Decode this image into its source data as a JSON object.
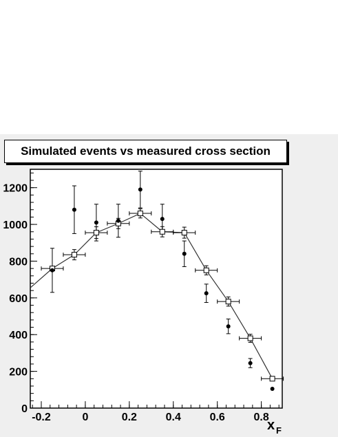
{
  "chart_data": {
    "type": "scatter",
    "title": "Simulated events vs measured cross section",
    "xlabel": "x",
    "xlabel_sub": "F",
    "ylabel": "",
    "xlim": [
      -0.25,
      0.895
    ],
    "ylim": [
      0,
      1300
    ],
    "x_ticks": [
      -0.2,
      0,
      0.2,
      0.4,
      0.6,
      0.8
    ],
    "x_tick_labels": [
      "-0.2",
      "0",
      "0.2",
      "0.4",
      "0.6",
      "0.8"
    ],
    "y_ticks": [
      0,
      200,
      400,
      600,
      800,
      1000,
      1200
    ],
    "y_tick_labels": [
      "0",
      "200",
      "400",
      "600",
      "800",
      "1000",
      "1200"
    ],
    "grid": false,
    "series": [
      {
        "marker": "open-square-with-line",
        "x": [
          -0.15,
          -0.05,
          0.05,
          0.15,
          0.25,
          0.35,
          0.45,
          0.55,
          0.65,
          0.75,
          0.85
        ],
        "y": [
          760,
          835,
          955,
          1005,
          1060,
          960,
          955,
          750,
          580,
          380,
          160
        ],
        "x_err": [
          0.05,
          0.05,
          0.05,
          0.05,
          0.05,
          0.05,
          0.05,
          0.05,
          0.05,
          0.05,
          0.05
        ],
        "y_err": [
          12,
          28,
          32,
          28,
          25,
          28,
          30,
          25,
          25,
          22,
          10
        ],
        "line_x": [
          -0.25,
          -0.15,
          -0.05,
          0.05,
          0.15,
          0.25,
          0.35,
          0.45,
          0.55,
          0.65,
          0.75,
          0.85
        ],
        "line_y": [
          655,
          760,
          835,
          955,
          1005,
          1060,
          960,
          955,
          750,
          580,
          380,
          160
        ]
      },
      {
        "marker": "filled-circle",
        "x": [
          -0.15,
          -0.05,
          0.05,
          0.15,
          0.25,
          0.35,
          0.45,
          0.55,
          0.65,
          0.75,
          0.85
        ],
        "y": [
          750,
          1080,
          1010,
          1020,
          1190,
          1030,
          840,
          625,
          445,
          245,
          105
        ],
        "y_err": [
          120,
          130,
          100,
          90,
          100,
          80,
          70,
          50,
          40,
          25,
          0
        ]
      }
    ]
  },
  "colors": {
    "frame_bg": "#efefef",
    "plot_bg": "#ffffff",
    "ink": "#000000",
    "square_line": "#333333"
  }
}
